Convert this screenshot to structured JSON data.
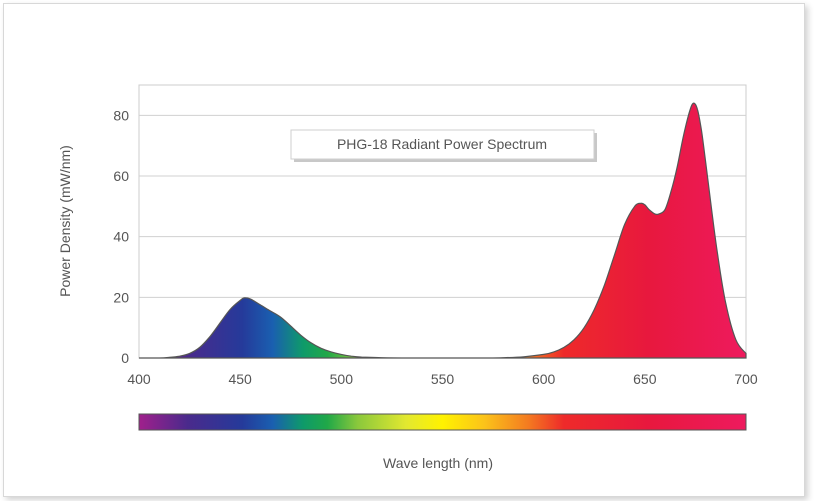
{
  "chart_data": {
    "type": "area",
    "title": "PHG-18 Radiant Power Spectrum",
    "xlabel": "Wave length (nm)",
    "ylabel": "Power Density (mW/nm)",
    "xlim": [
      400,
      700
    ],
    "ylim": [
      0,
      90
    ],
    "xticks": [
      400,
      450,
      500,
      550,
      600,
      650,
      700
    ],
    "yticks": [
      0,
      20,
      40,
      60,
      80
    ],
    "grid": "horizontal",
    "colorbar": true,
    "x": [
      400,
      410,
      415,
      420,
      425,
      430,
      435,
      440,
      445,
      450,
      452,
      455,
      460,
      465,
      470,
      475,
      480,
      485,
      490,
      495,
      500,
      505,
      510,
      520,
      530,
      550,
      570,
      580,
      590,
      600,
      605,
      610,
      615,
      620,
      625,
      630,
      635,
      640,
      645,
      648,
      650,
      652,
      655,
      657,
      660,
      663,
      666,
      669,
      672,
      674,
      676,
      678,
      680,
      683,
      686,
      690,
      695,
      700
    ],
    "y": [
      0,
      0,
      0.2,
      0.6,
      1.5,
      3.5,
      7,
      11.5,
      16,
      19,
      19.8,
      19.5,
      17.5,
      15.5,
      13.5,
      10.5,
      7.5,
      5,
      3.2,
      2,
      1.2,
      0.6,
      0.3,
      0.1,
      0,
      0,
      0,
      0.1,
      0.4,
      1.2,
      2,
      3.5,
      6,
      10,
      16,
      24,
      34,
      44,
      50,
      51,
      50.5,
      49,
      47.5,
      47.5,
      49,
      55,
      63,
      73,
      81,
      84,
      82,
      75,
      65,
      49,
      34,
      18,
      6,
      1.5
    ]
  }
}
